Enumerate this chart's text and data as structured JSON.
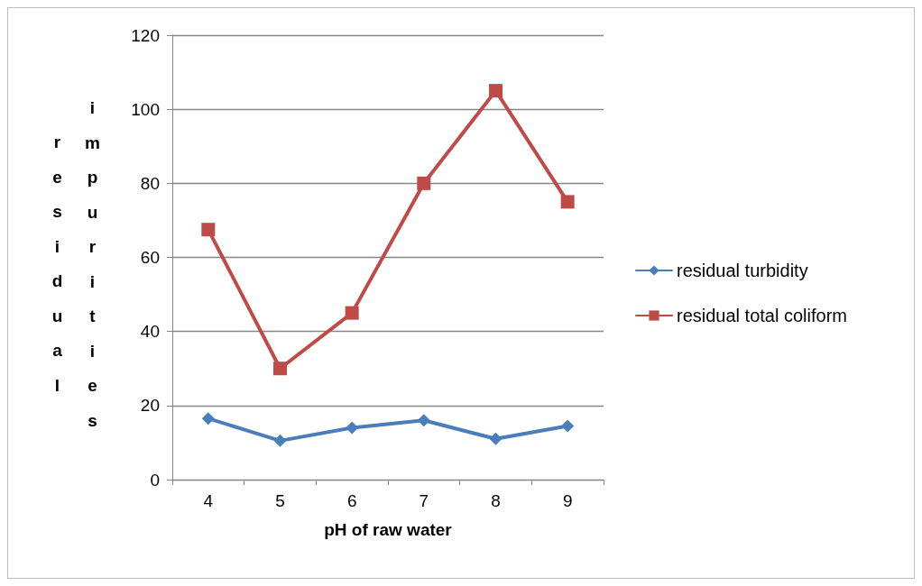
{
  "chart_data": {
    "type": "line",
    "xlabel": "pH of raw water",
    "ylabel": "residual impurities",
    "categories": [
      "4",
      "5",
      "6",
      "7",
      "8",
      "9"
    ],
    "series": [
      {
        "name": "residual turbidity",
        "color": "#4a7ebb",
        "marker": "diamond",
        "values": [
          16.5,
          10.5,
          14,
          16,
          11,
          14.5
        ]
      },
      {
        "name": "residual total coliform",
        "color": "#be4b48",
        "marker": "square",
        "values": [
          67.5,
          30,
          45,
          80,
          105,
          75
        ]
      }
    ],
    "ylim": [
      0,
      120
    ],
    "yticks": [
      0,
      20,
      40,
      60,
      80,
      100,
      120
    ],
    "grid": "y",
    "legend": "right",
    "line_style": "solid"
  }
}
